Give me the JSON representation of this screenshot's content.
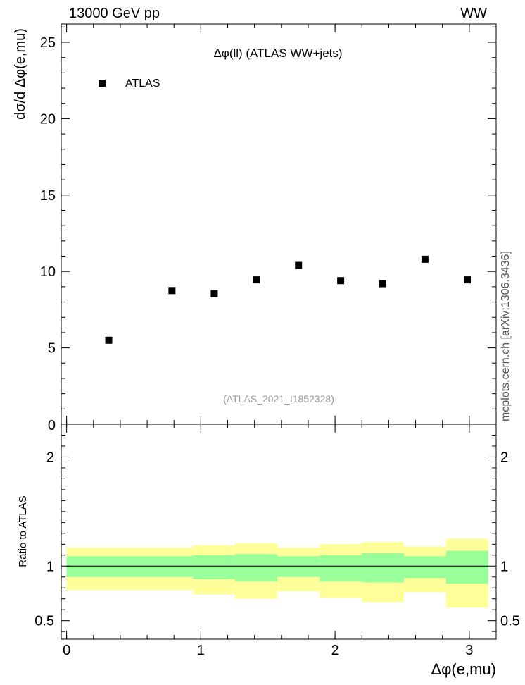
{
  "header": {
    "left": "13000 GeV pp",
    "right": "WW"
  },
  "side_label": "mcplots.cern.ch [arXiv:1306.3436]",
  "chart_data": [
    {
      "type": "scatter",
      "title": "Δφ(ll) (ATLAS WW+jets)",
      "subtitle": "(ATLAS_2021_I1852328)",
      "ylabel": "dσ/d Δφ(e,mu)",
      "xlabel": "",
      "xlim": [
        -0.04,
        3.2
      ],
      "ylim": [
        0,
        26.2
      ],
      "yticks": [
        0,
        5,
        10,
        15,
        20,
        25
      ],
      "ytick_labels": [
        "0",
        "5",
        "10",
        "15",
        "20",
        "25"
      ],
      "grid": false,
      "legend": {
        "placement": "top-left",
        "entries": [
          "ATLAS"
        ]
      },
      "series": [
        {
          "name": "ATLAS",
          "color": "#000000",
          "x": [
            0.314,
            0.785,
            1.1,
            1.414,
            1.728,
            2.042,
            2.356,
            2.67,
            2.985
          ],
          "y": [
            5.5,
            8.75,
            8.55,
            9.45,
            10.4,
            9.4,
            9.2,
            10.8,
            9.45
          ]
        }
      ]
    },
    {
      "type": "area",
      "title": "",
      "ylabel": "Ratio to ATLAS",
      "xlabel": "Δφ(e,mu)",
      "xlim": [
        -0.04,
        3.2
      ],
      "ylim": [
        0.33,
        2.3
      ],
      "xticks": [
        0,
        1,
        2,
        3
      ],
      "xtick_labels": [
        "0",
        "1",
        "2",
        "3"
      ],
      "yticks": [
        0.5,
        1,
        2
      ],
      "ytick_labels": [
        "0.5",
        "1",
        "2"
      ],
      "reference_line": 1,
      "colors": {
        "inner_band": "#99ff99",
        "outer_band": "#ffff99"
      },
      "bins": [
        {
          "x0": 0.0,
          "x1": 0.942,
          "inner": [
            0.9,
            1.09
          ],
          "outer": [
            0.78,
            1.17
          ]
        },
        {
          "x0": 0.942,
          "x1": 1.257,
          "inner": [
            0.88,
            1.1
          ],
          "outer": [
            0.74,
            1.19
          ]
        },
        {
          "x0": 1.257,
          "x1": 1.571,
          "inner": [
            0.86,
            1.11
          ],
          "outer": [
            0.7,
            1.21
          ]
        },
        {
          "x0": 1.571,
          "x1": 1.885,
          "inner": [
            0.9,
            1.09
          ],
          "outer": [
            0.77,
            1.17
          ]
        },
        {
          "x0": 1.885,
          "x1": 2.199,
          "inner": [
            0.86,
            1.1
          ],
          "outer": [
            0.71,
            1.2
          ]
        },
        {
          "x0": 2.199,
          "x1": 2.513,
          "inner": [
            0.85,
            1.12
          ],
          "outer": [
            0.67,
            1.22
          ]
        },
        {
          "x0": 2.513,
          "x1": 2.827,
          "inner": [
            0.89,
            1.09
          ],
          "outer": [
            0.76,
            1.18
          ]
        },
        {
          "x0": 2.827,
          "x1": 3.142,
          "inner": [
            0.84,
            1.14
          ],
          "outer": [
            0.62,
            1.25
          ]
        }
      ]
    }
  ]
}
